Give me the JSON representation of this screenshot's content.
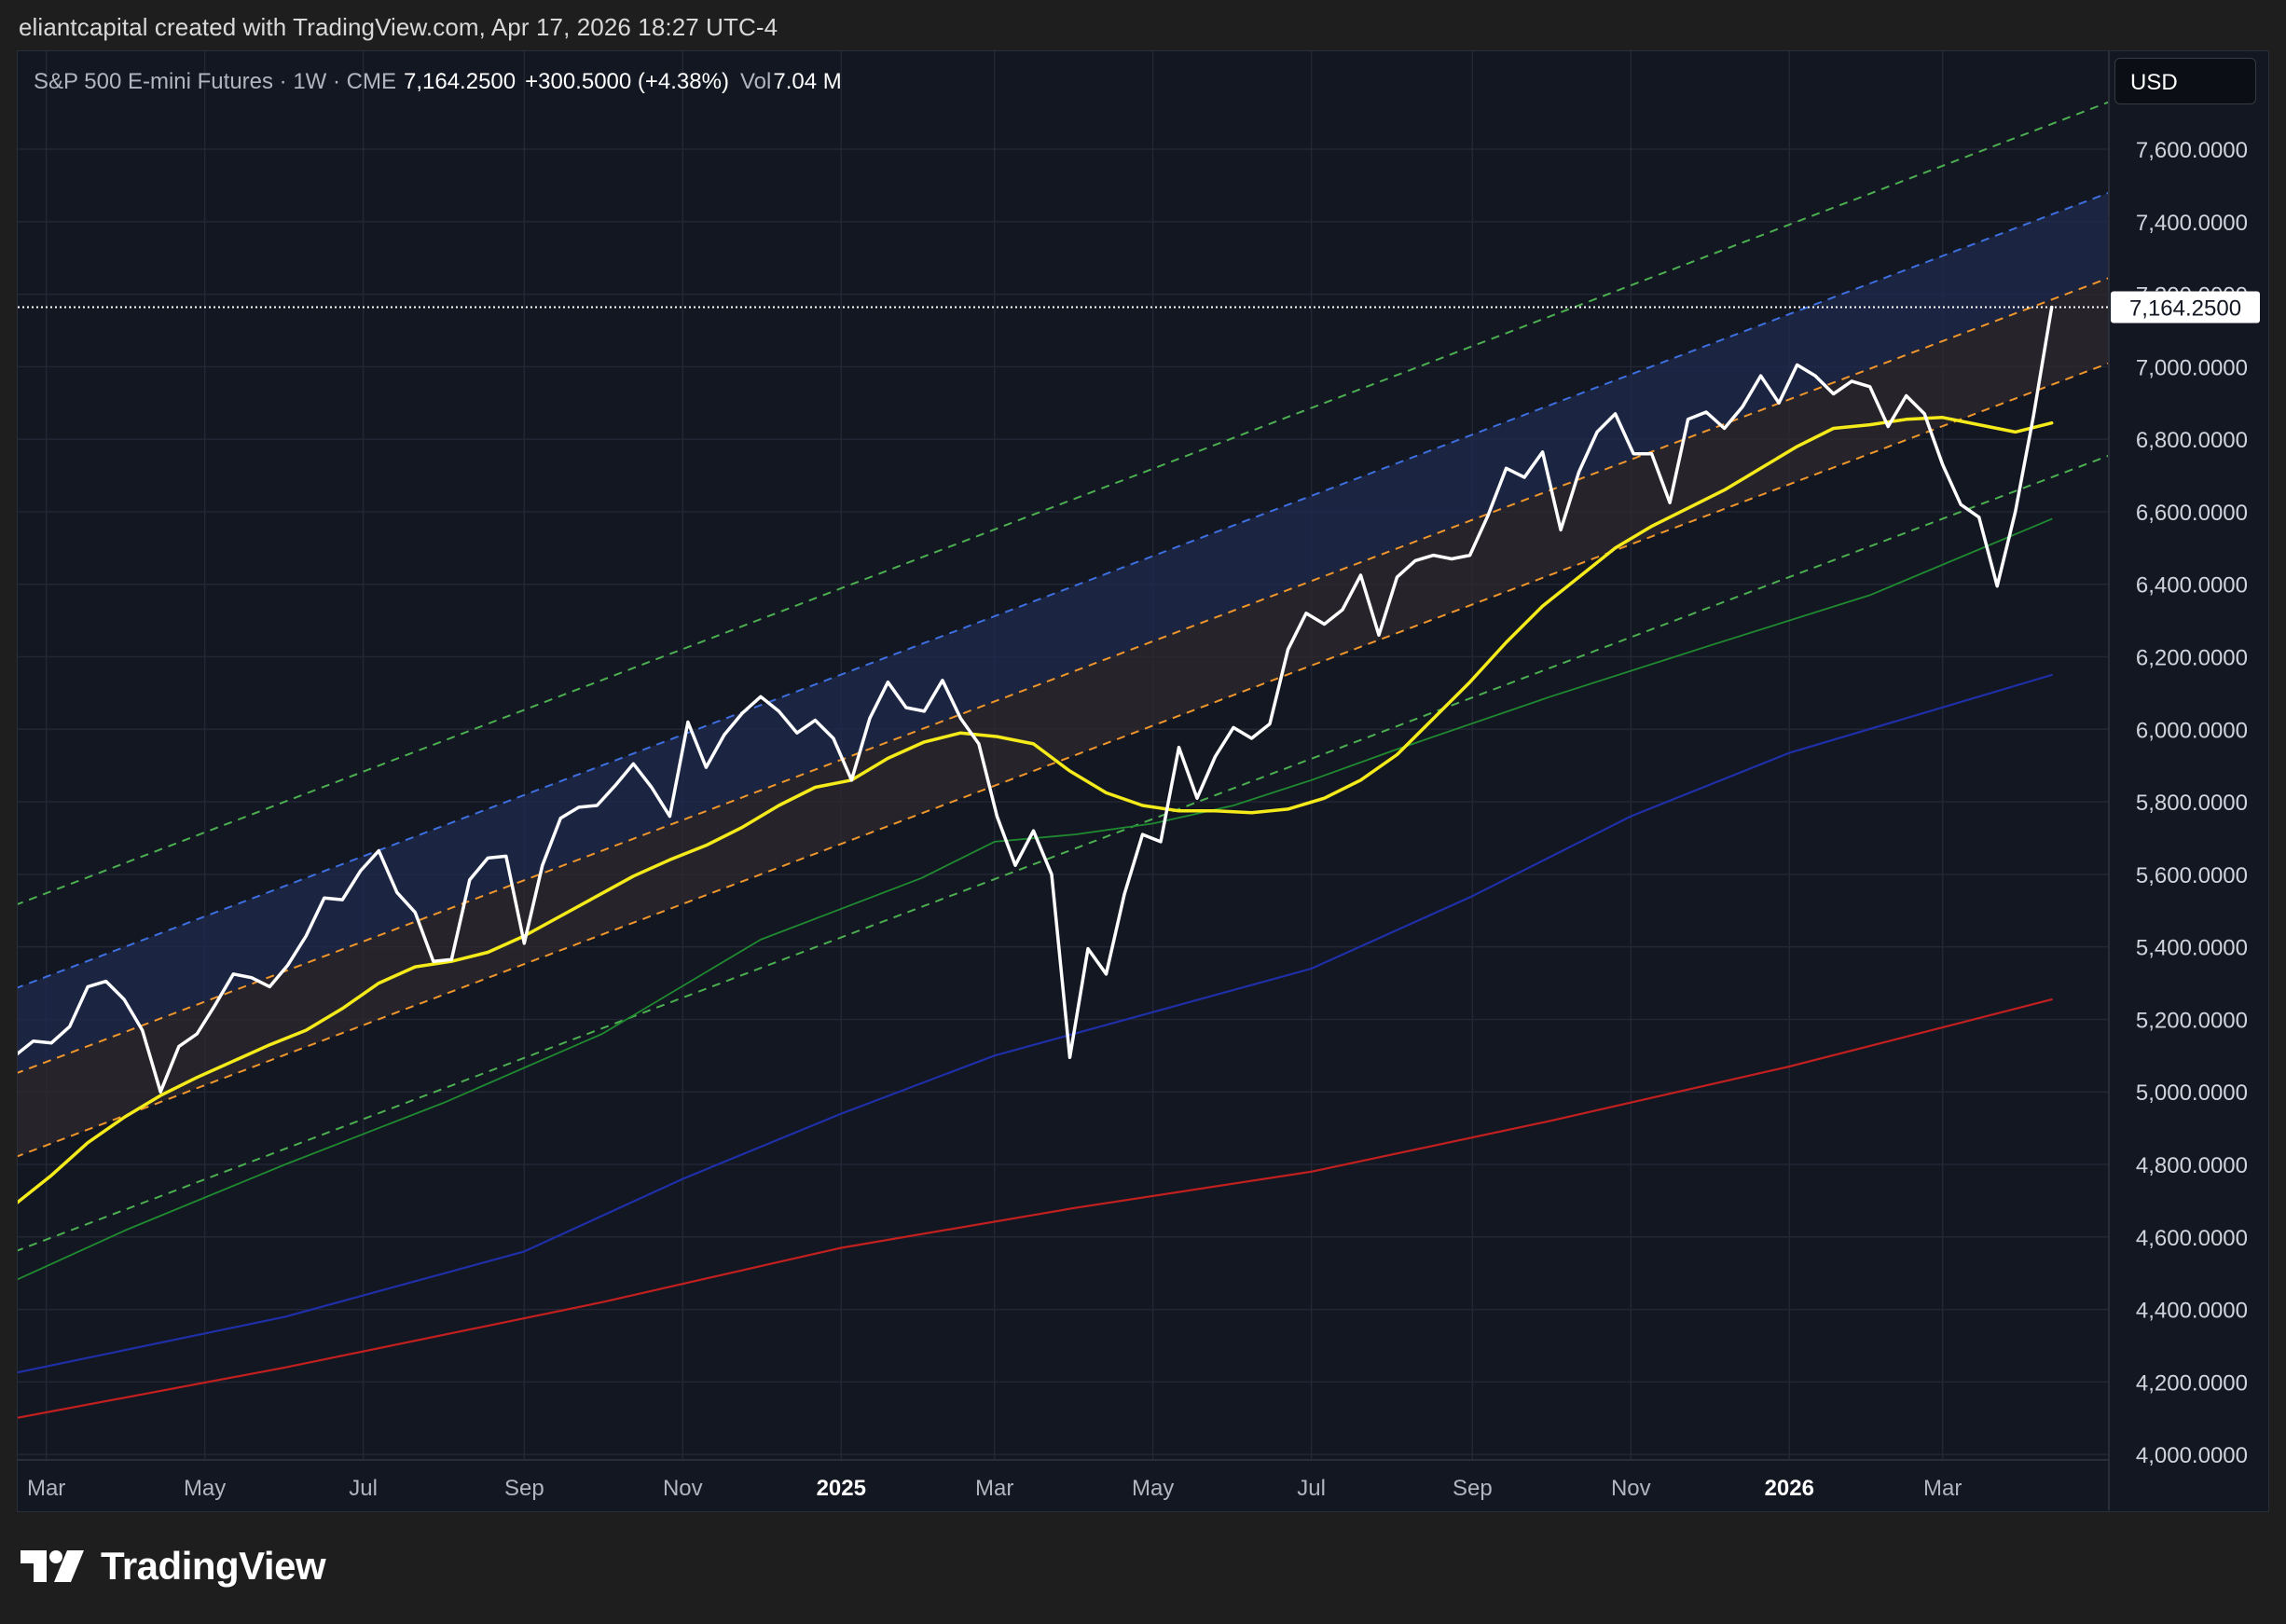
{
  "attribution": "eliantcapital created with TradingView.com, Apr 17, 2026 18:27 UTC-4",
  "legend": {
    "symbol": "S&P 500 E-mini Futures · 1W · CME",
    "last": "7,164.2500",
    "change": "+300.5000 (+4.38%)",
    "vol_label": "Vol",
    "vol_value": "7.04 M"
  },
  "currency": "USD",
  "last_price_label": "7,164.2500",
  "brand": "TradingView",
  "colors": {
    "price": "#ffffff",
    "ma_yellow": "#f5eb1b",
    "ma_green": "#1f8a30",
    "ma_navy": "#1e2fa8",
    "ma_red": "#c21f1f",
    "channel_outer": "#4caf50",
    "channel_upper": "#3d6fe0",
    "channel_inner": "#f0962a"
  },
  "chart_data": {
    "type": "line",
    "timeframe": "1W",
    "x_range": [
      "2024-02-19",
      "2026-05-04"
    ],
    "y_range": [
      3985,
      7870
    ],
    "y_ticks": [
      4000,
      4200,
      4400,
      4600,
      4800,
      5000,
      5200,
      5400,
      5600,
      5800,
      6000,
      6200,
      6400,
      6600,
      6800,
      7000,
      7200,
      7400,
      7600
    ],
    "y_tick_labels": [
      "4,000.0000",
      "4,200.0000",
      "4,400.0000",
      "4,600.0000",
      "4,800.0000",
      "5,000.0000",
      "5,200.0000",
      "5,400.0000",
      "5,600.0000",
      "5,800.0000",
      "6,000.0000",
      "6,200.0000",
      "6,400.0000",
      "6,600.0000",
      "6,800.0000",
      "7,000.0000",
      "7,200.0000",
      "7,400.0000",
      "7,600.0000"
    ],
    "x_ticks": [
      {
        "date": "2024-03-01",
        "label": "Mar"
      },
      {
        "date": "2024-05-01",
        "label": "May"
      },
      {
        "date": "2024-07-01",
        "label": "Jul"
      },
      {
        "date": "2024-09-01",
        "label": "Sep"
      },
      {
        "date": "2024-11-01",
        "label": "Nov"
      },
      {
        "date": "2025-01-01",
        "label": "2025",
        "major": true
      },
      {
        "date": "2025-03-01",
        "label": "Mar"
      },
      {
        "date": "2025-05-01",
        "label": "May"
      },
      {
        "date": "2025-07-01",
        "label": "Jul"
      },
      {
        "date": "2025-09-01",
        "label": "Sep"
      },
      {
        "date": "2025-11-01",
        "label": "Nov"
      },
      {
        "date": "2026-01-01",
        "label": "2026",
        "major": true
      },
      {
        "date": "2026-03-01",
        "label": "Mar"
      }
    ],
    "last_price": 7164.25,
    "series": [
      {
        "role": "price",
        "points": [
          [
            "2024-02-18",
            5100
          ],
          [
            "2024-02-25",
            5140
          ],
          [
            "2024-03-03",
            5135
          ],
          [
            "2024-03-10",
            5180
          ],
          [
            "2024-03-17",
            5290
          ],
          [
            "2024-03-24",
            5305
          ],
          [
            "2024-03-31",
            5255
          ],
          [
            "2024-04-07",
            5170
          ],
          [
            "2024-04-14",
            5000
          ],
          [
            "2024-04-21",
            5125
          ],
          [
            "2024-04-28",
            5160
          ],
          [
            "2024-05-05",
            5240
          ],
          [
            "2024-05-12",
            5325
          ],
          [
            "2024-05-19",
            5315
          ],
          [
            "2024-05-26",
            5290
          ],
          [
            "2024-06-02",
            5350
          ],
          [
            "2024-06-09",
            5430
          ],
          [
            "2024-06-16",
            5535
          ],
          [
            "2024-06-23",
            5530
          ],
          [
            "2024-06-30",
            5610
          ],
          [
            "2024-07-07",
            5665
          ],
          [
            "2024-07-14",
            5550
          ],
          [
            "2024-07-21",
            5495
          ],
          [
            "2024-07-28",
            5360
          ],
          [
            "2024-08-04",
            5365
          ],
          [
            "2024-08-11",
            5585
          ],
          [
            "2024-08-18",
            5645
          ],
          [
            "2024-08-25",
            5650
          ],
          [
            "2024-09-01",
            5410
          ],
          [
            "2024-09-08",
            5625
          ],
          [
            "2024-09-15",
            5755
          ],
          [
            "2024-09-22",
            5785
          ],
          [
            "2024-09-29",
            5790
          ],
          [
            "2024-10-06",
            5845
          ],
          [
            "2024-10-13",
            5905
          ],
          [
            "2024-10-20",
            5840
          ],
          [
            "2024-10-27",
            5760
          ],
          [
            "2024-11-03",
            6020
          ],
          [
            "2024-11-10",
            5895
          ],
          [
            "2024-11-17",
            5985
          ],
          [
            "2024-11-24",
            6045
          ],
          [
            "2024-12-01",
            6090
          ],
          [
            "2024-12-08",
            6050
          ],
          [
            "2024-12-15",
            5990
          ],
          [
            "2024-12-22",
            6025
          ],
          [
            "2024-12-29",
            5975
          ],
          [
            "2025-01-05",
            5860
          ],
          [
            "2025-01-12",
            6030
          ],
          [
            "2025-01-19",
            6130
          ],
          [
            "2025-01-26",
            6060
          ],
          [
            "2025-02-02",
            6050
          ],
          [
            "2025-02-09",
            6135
          ],
          [
            "2025-02-16",
            6030
          ],
          [
            "2025-02-23",
            5960
          ],
          [
            "2025-03-02",
            5760
          ],
          [
            "2025-03-09",
            5625
          ],
          [
            "2025-03-16",
            5720
          ],
          [
            "2025-03-23",
            5600
          ],
          [
            "2025-03-30",
            5095
          ],
          [
            "2025-04-06",
            5395
          ],
          [
            "2025-04-13",
            5325
          ],
          [
            "2025-04-20",
            5545
          ],
          [
            "2025-04-27",
            5710
          ],
          [
            "2025-05-04",
            5690
          ],
          [
            "2025-05-11",
            5950
          ],
          [
            "2025-05-18",
            5810
          ],
          [
            "2025-05-25",
            5925
          ],
          [
            "2025-06-01",
            6005
          ],
          [
            "2025-06-08",
            5975
          ],
          [
            "2025-06-15",
            6015
          ],
          [
            "2025-06-22",
            6220
          ],
          [
            "2025-06-29",
            6320
          ],
          [
            "2025-07-06",
            6290
          ],
          [
            "2025-07-13",
            6330
          ],
          [
            "2025-07-20",
            6425
          ],
          [
            "2025-07-27",
            6260
          ],
          [
            "2025-08-03",
            6420
          ],
          [
            "2025-08-10",
            6465
          ],
          [
            "2025-08-17",
            6480
          ],
          [
            "2025-08-24",
            6470
          ],
          [
            "2025-08-31",
            6480
          ],
          [
            "2025-09-07",
            6590
          ],
          [
            "2025-09-14",
            6720
          ],
          [
            "2025-09-21",
            6695
          ],
          [
            "2025-09-28",
            6765
          ],
          [
            "2025-10-05",
            6550
          ],
          [
            "2025-10-12",
            6710
          ],
          [
            "2025-10-19",
            6820
          ],
          [
            "2025-10-26",
            6870
          ],
          [
            "2025-11-02",
            6760
          ],
          [
            "2025-11-09",
            6760
          ],
          [
            "2025-11-16",
            6625
          ],
          [
            "2025-11-23",
            6855
          ],
          [
            "2025-11-30",
            6875
          ],
          [
            "2025-12-07",
            6830
          ],
          [
            "2025-12-14",
            6890
          ],
          [
            "2025-12-21",
            6975
          ],
          [
            "2025-12-28",
            6900
          ],
          [
            "2026-01-04",
            7005
          ],
          [
            "2026-01-11",
            6975
          ],
          [
            "2026-01-18",
            6925
          ],
          [
            "2026-01-25",
            6960
          ],
          [
            "2026-02-01",
            6945
          ],
          [
            "2026-02-08",
            6835
          ],
          [
            "2026-02-15",
            6920
          ],
          [
            "2026-02-22",
            6870
          ],
          [
            "2026-03-01",
            6730
          ],
          [
            "2026-03-08",
            6620
          ],
          [
            "2026-03-15",
            6585
          ],
          [
            "2026-03-22",
            6395
          ],
          [
            "2026-03-29",
            6600
          ],
          [
            "2026-04-05",
            6865
          ],
          [
            "2026-04-12",
            7164.25
          ]
        ]
      },
      {
        "role": "ma_yellow",
        "points": [
          [
            "2024-02-18",
            4690
          ],
          [
            "2024-03-03",
            4770
          ],
          [
            "2024-03-17",
            4860
          ],
          [
            "2024-03-31",
            4930
          ],
          [
            "2024-04-14",
            4990
          ],
          [
            "2024-04-28",
            5040
          ],
          [
            "2024-05-12",
            5085
          ],
          [
            "2024-05-26",
            5130
          ],
          [
            "2024-06-09",
            5170
          ],
          [
            "2024-06-23",
            5230
          ],
          [
            "2024-07-07",
            5300
          ],
          [
            "2024-07-21",
            5345
          ],
          [
            "2024-08-04",
            5360
          ],
          [
            "2024-08-18",
            5385
          ],
          [
            "2024-09-01",
            5430
          ],
          [
            "2024-09-15",
            5485
          ],
          [
            "2024-09-29",
            5540
          ],
          [
            "2024-10-13",
            5595
          ],
          [
            "2024-10-27",
            5640
          ],
          [
            "2024-11-10",
            5680
          ],
          [
            "2024-11-24",
            5730
          ],
          [
            "2024-12-08",
            5790
          ],
          [
            "2024-12-22",
            5840
          ],
          [
            "2025-01-05",
            5860
          ],
          [
            "2025-01-19",
            5920
          ],
          [
            "2025-02-02",
            5965
          ],
          [
            "2025-02-16",
            5990
          ],
          [
            "2025-03-02",
            5980
          ],
          [
            "2025-03-16",
            5960
          ],
          [
            "2025-03-30",
            5885
          ],
          [
            "2025-04-13",
            5825
          ],
          [
            "2025-04-27",
            5790
          ],
          [
            "2025-05-11",
            5775
          ],
          [
            "2025-05-25",
            5775
          ],
          [
            "2025-06-08",
            5770
          ],
          [
            "2025-06-22",
            5780
          ],
          [
            "2025-07-06",
            5810
          ],
          [
            "2025-07-20",
            5860
          ],
          [
            "2025-08-03",
            5930
          ],
          [
            "2025-08-17",
            6030
          ],
          [
            "2025-08-31",
            6130
          ],
          [
            "2025-09-14",
            6240
          ],
          [
            "2025-09-28",
            6340
          ],
          [
            "2025-10-12",
            6420
          ],
          [
            "2025-10-26",
            6500
          ],
          [
            "2025-11-09",
            6560
          ],
          [
            "2025-11-23",
            6610
          ],
          [
            "2025-12-07",
            6660
          ],
          [
            "2025-12-21",
            6720
          ],
          [
            "2026-01-04",
            6780
          ],
          [
            "2026-01-18",
            6830
          ],
          [
            "2026-02-01",
            6840
          ],
          [
            "2026-02-15",
            6855
          ],
          [
            "2026-03-01",
            6860
          ],
          [
            "2026-03-15",
            6840
          ],
          [
            "2026-03-29",
            6820
          ],
          [
            "2026-04-12",
            6845
          ]
        ]
      },
      {
        "role": "ma_green",
        "points": [
          [
            "2024-02-18",
            4480
          ],
          [
            "2024-04-01",
            4620
          ],
          [
            "2024-06-01",
            4800
          ],
          [
            "2024-08-01",
            4970
          ],
          [
            "2024-10-01",
            5160
          ],
          [
            "2024-12-01",
            5420
          ],
          [
            "2025-02-01",
            5590
          ],
          [
            "2025-03-01",
            5690
          ],
          [
            "2025-04-01",
            5710
          ],
          [
            "2025-05-01",
            5740
          ],
          [
            "2025-06-01",
            5790
          ],
          [
            "2025-07-01",
            5860
          ],
          [
            "2025-08-01",
            5940
          ],
          [
            "2025-10-01",
            6090
          ],
          [
            "2025-12-01",
            6230
          ],
          [
            "2026-02-01",
            6370
          ],
          [
            "2026-04-12",
            6580
          ]
        ]
      },
      {
        "role": "ma_navy",
        "points": [
          [
            "2024-02-18",
            4225
          ],
          [
            "2024-06-01",
            4380
          ],
          [
            "2024-09-01",
            4560
          ],
          [
            "2024-11-01",
            4760
          ],
          [
            "2025-01-01",
            4940
          ],
          [
            "2025-03-01",
            5100
          ],
          [
            "2025-05-01",
            5220
          ],
          [
            "2025-07-01",
            5340
          ],
          [
            "2025-09-01",
            5540
          ],
          [
            "2025-11-01",
            5760
          ],
          [
            "2026-01-01",
            5935
          ],
          [
            "2026-04-12",
            6150
          ]
        ]
      },
      {
        "role": "ma_red",
        "points": [
          [
            "2024-02-18",
            4100
          ],
          [
            "2024-06-01",
            4240
          ],
          [
            "2024-10-01",
            4420
          ],
          [
            "2025-01-01",
            4570
          ],
          [
            "2025-04-01",
            4680
          ],
          [
            "2025-07-01",
            4780
          ],
          [
            "2025-10-01",
            4920
          ],
          [
            "2026-01-01",
            5070
          ],
          [
            "2026-04-12",
            5255
          ]
        ]
      }
    ],
    "channel": {
      "start": "2024-02-18",
      "end": "2026-05-04",
      "lines": [
        {
          "role": "outer_upper",
          "color_key": "channel_outer",
          "from": 5515,
          "to": 7730
        },
        {
          "role": "upper",
          "color_key": "channel_upper",
          "from": 5285,
          "to": 7480
        },
        {
          "role": "inner_upper",
          "color_key": "channel_inner",
          "from": 5050,
          "to": 7245
        },
        {
          "role": "inner_lower",
          "color_key": "channel_inner",
          "from": 4820,
          "to": 7010
        },
        {
          "role": "outer_lower",
          "color_key": "channel_outer",
          "from": 4560,
          "to": 6755
        }
      ],
      "fills": [
        {
          "between": [
            "upper",
            "inner_upper"
          ],
          "color": "#1f2b4d"
        },
        {
          "between": [
            "inner_upper",
            "inner_lower"
          ],
          "color": "#2e2a2e"
        }
      ]
    }
  }
}
